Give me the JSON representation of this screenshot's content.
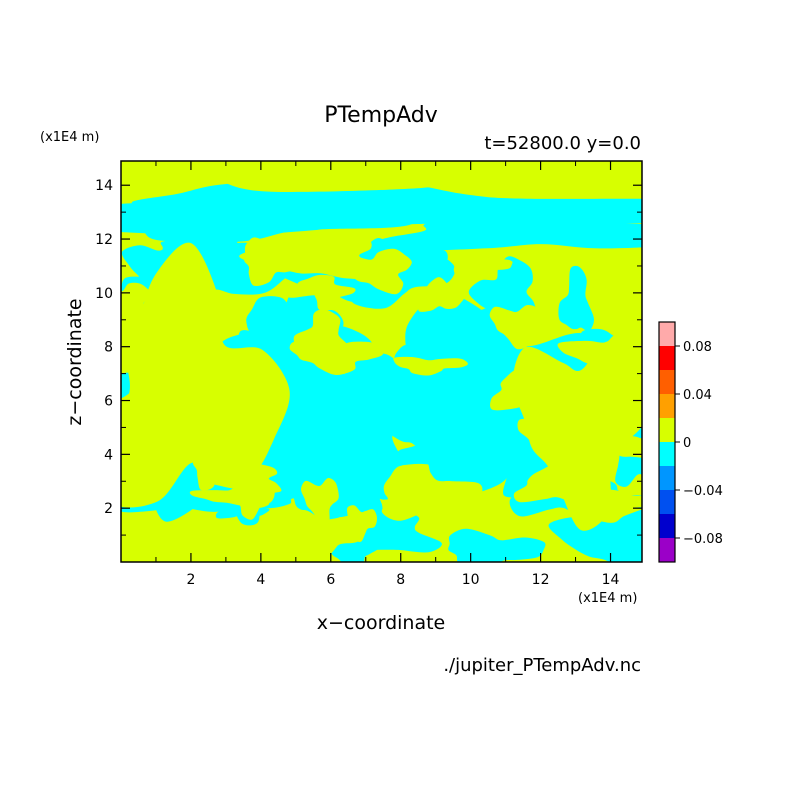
{
  "chart_data": {
    "type": "heatmap",
    "title": "PTempAdv",
    "subtitle": "t=52800.0 y=0.0",
    "xlabel": "x−coordinate",
    "ylabel": "z−coordinate",
    "x_unit": "(x1E4 m)",
    "y_unit": "(x1E4 m)",
    "xlim": [
      0,
      14.9
    ],
    "ylim": [
      0,
      14.9
    ],
    "x_ticks": [
      2,
      4,
      6,
      8,
      10,
      12,
      14
    ],
    "y_ticks": [
      2,
      4,
      6,
      8,
      10,
      12,
      14
    ],
    "x_tick_labels": [
      "2",
      "4",
      "6",
      "8",
      "10",
      "12",
      "14"
    ],
    "y_tick_labels": [
      "2",
      "4",
      "6",
      "8",
      "10",
      "12",
      "14"
    ],
    "source_file": "./jupiter_PTempAdv.nc",
    "colorbar": {
      "levels": [
        -0.1,
        -0.08,
        -0.06,
        -0.04,
        -0.02,
        0,
        0.02,
        0.04,
        0.06,
        0.08,
        0.1
      ],
      "colors": [
        "#9b00c8",
        "#0000cd",
        "#0050f0",
        "#0096ff",
        "#00ffff",
        "#d7ff00",
        "#ffa000",
        "#ff5f00",
        "#ff0000",
        "#ffaaaa"
      ],
      "tick_values": [
        -0.08,
        -0.04,
        0,
        0.04,
        0.08
      ],
      "tick_labels": [
        "−0.08",
        "−0.04",
        "0",
        "0.04",
        "0.08"
      ]
    },
    "field_description": "contour fill of PTempAdv with values mostly between -0.02 and 0.02; yellow-green (0 to 0.02) and cyan (-0.02 to 0) patches",
    "regions": {
      "positive_color": "#d7ff00",
      "negative_color": "#00ffff"
    }
  }
}
